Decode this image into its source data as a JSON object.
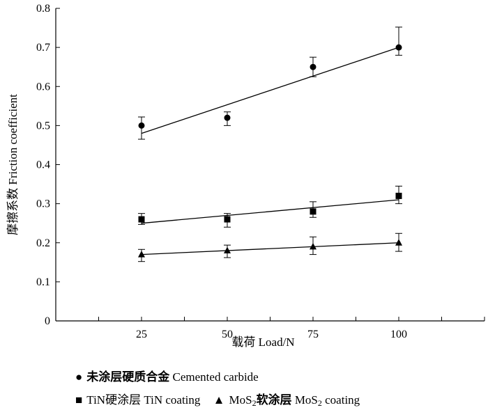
{
  "chart_data": {
    "type": "scatter",
    "xlabel": "载荷 Load/N",
    "ylabel": "摩擦系数 Friction coefficient",
    "xlim": [
      0,
      125
    ],
    "ylim": [
      0,
      0.8
    ],
    "x_ticks": [
      "25",
      "50",
      "75",
      "100"
    ],
    "y_ticks": [
      "0",
      "0.1",
      "0.2",
      "0.3",
      "0.4",
      "0.5",
      "0.6",
      "0.7",
      "0.8"
    ],
    "grid": false,
    "legend_position": "bottom",
    "series": [
      {
        "name": "未涂层硬质合金 Cemented carbide",
        "marker": "circle",
        "x": [
          25,
          50,
          75,
          100
        ],
        "y": [
          0.5,
          0.52,
          0.65,
          0.7
        ],
        "err_low": [
          0.035,
          0.02,
          0.025,
          0.02
        ],
        "err_high": [
          0.022,
          0.015,
          0.025,
          0.052
        ],
        "trend": {
          "x": [
            25,
            100
          ],
          "y": [
            0.48,
            0.7
          ]
        }
      },
      {
        "name": "TiN硬涂层 TiN coating",
        "marker": "square",
        "x": [
          25,
          50,
          75,
          100
        ],
        "y": [
          0.26,
          0.26,
          0.28,
          0.32
        ],
        "err_low": [
          0.013,
          0.02,
          0.015,
          0.02
        ],
        "err_high": [
          0.015,
          0.015,
          0.025,
          0.025
        ],
        "trend": {
          "x": [
            25,
            100
          ],
          "y": [
            0.25,
            0.31
          ]
        }
      },
      {
        "name": "MoS2软涂层 MoS2 coating",
        "marker": "triangle",
        "x": [
          25,
          50,
          75,
          100
        ],
        "y": [
          0.17,
          0.18,
          0.19,
          0.2
        ],
        "err_low": [
          0.018,
          0.018,
          0.02,
          0.022
        ],
        "err_high": [
          0.013,
          0.014,
          0.025,
          0.024
        ],
        "trend": {
          "x": [
            25,
            100
          ],
          "y": [
            0.17,
            0.2
          ]
        }
      }
    ],
    "legend": {
      "carbide_cn": "未涂层硬质合金",
      "carbide_en": "Cemented carbide",
      "tin_cn": "TiN硬涂层",
      "tin_en": "TiN coating",
      "mos2_prefix": "MoS",
      "mos2_sub": "2",
      "mos2_cn": "软涂层",
      "mos2_en_prefix": "MoS",
      "mos2_en_sub": "2",
      "mos2_en_suffix": "coating"
    }
  }
}
